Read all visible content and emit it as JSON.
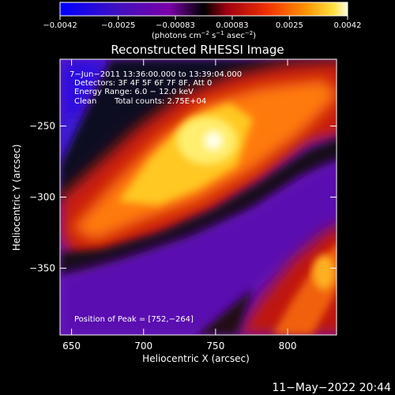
{
  "chart_data": {
    "type": "heatmap",
    "title": "Reconstructed RHESSI Image",
    "xlabel": "Heliocentric X (arcsec)",
    "ylabel": "Heliocentric Y (arcsec)",
    "xlim": [
      642,
      834
    ],
    "ylim": [
      -397,
      -203
    ],
    "x_ticks": [
      650,
      700,
      750,
      800
    ],
    "y_ticks": [
      -250,
      -300,
      -350
    ],
    "x_tick_labels": [
      "650",
      "700",
      "750",
      "800"
    ],
    "y_tick_labels": [
      "−250",
      "−300",
      "−350"
    ],
    "colorbar": {
      "min": -0.0042,
      "max": 0.0042,
      "ticks": [
        -0.0042,
        -0.0025,
        -0.00083,
        0.00083,
        0.0025,
        0.0042
      ],
      "tick_labels": [
        "−0.0042",
        "−0.0025",
        "−0.00083",
        "0.00083",
        "0.0025",
        "0.0042"
      ],
      "unit_parts": [
        "(photons cm",
        "−2",
        " s",
        "−1",
        " asec",
        "−2",
        ")"
      ]
    },
    "annotations": [
      "7−Jun−2011 13:36:00.000 to 13:39:04.000",
      "Detectors: 3F 4F 5F 6F 7F 8F, Att 0",
      "Energy Range: 6.0 − 12.0 keV",
      "Clean",
      "Total counts: 2.75E+04"
    ],
    "peak_label": "Position of Peak = [752,−264]",
    "peak": [
      752,
      -264
    ],
    "timestamp": "11−May−2022 20:44",
    "colormap": [
      "#0000ff",
      "#2a00d8",
      "#6600aa",
      "#8a00a0",
      "#000000",
      "#a00010",
      "#e82800",
      "#ff8000",
      "#ffd020",
      "#ffffe0"
    ]
  }
}
